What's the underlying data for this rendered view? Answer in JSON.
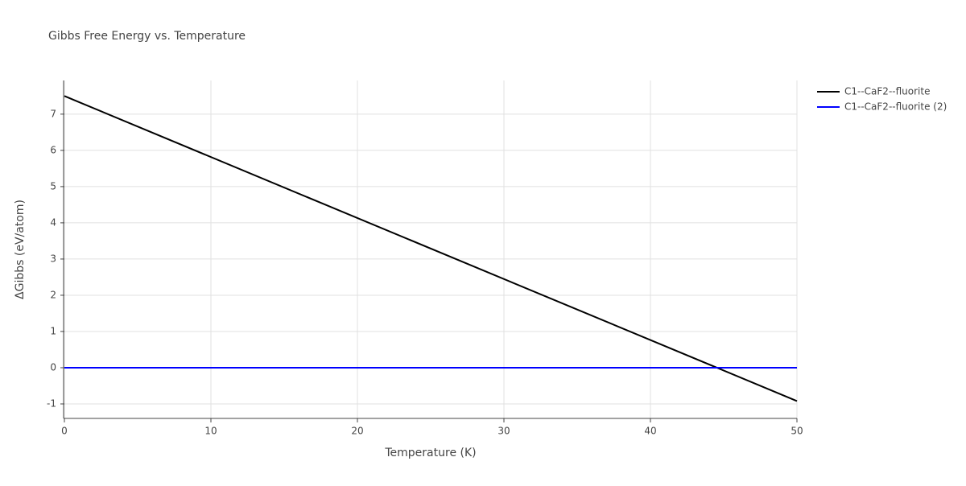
{
  "chart_data": {
    "type": "line",
    "title": "Gibbs Free Energy vs. Temperature",
    "x_label": "Temperature (K)",
    "y_label": "ΔGibbs (eV/atom)",
    "x": [
      0,
      50
    ],
    "series": [
      {
        "name": "C1--CaF2--fluorite",
        "color": "#000000",
        "values": [
          7.5,
          -0.92
        ]
      },
      {
        "name": "C1--CaF2--fluorite (2)",
        "color": "#0000ff",
        "values": [
          0,
          0
        ]
      }
    ],
    "xlim": [
      0,
      50
    ],
    "xticks": [
      0,
      10,
      20,
      30,
      40,
      50
    ],
    "ylim": [
      -1.4,
      7.93
    ],
    "yticks": [
      -1,
      0,
      1,
      2,
      3,
      4,
      5,
      6,
      7
    ],
    "grid": true,
    "legend": "top-right"
  }
}
